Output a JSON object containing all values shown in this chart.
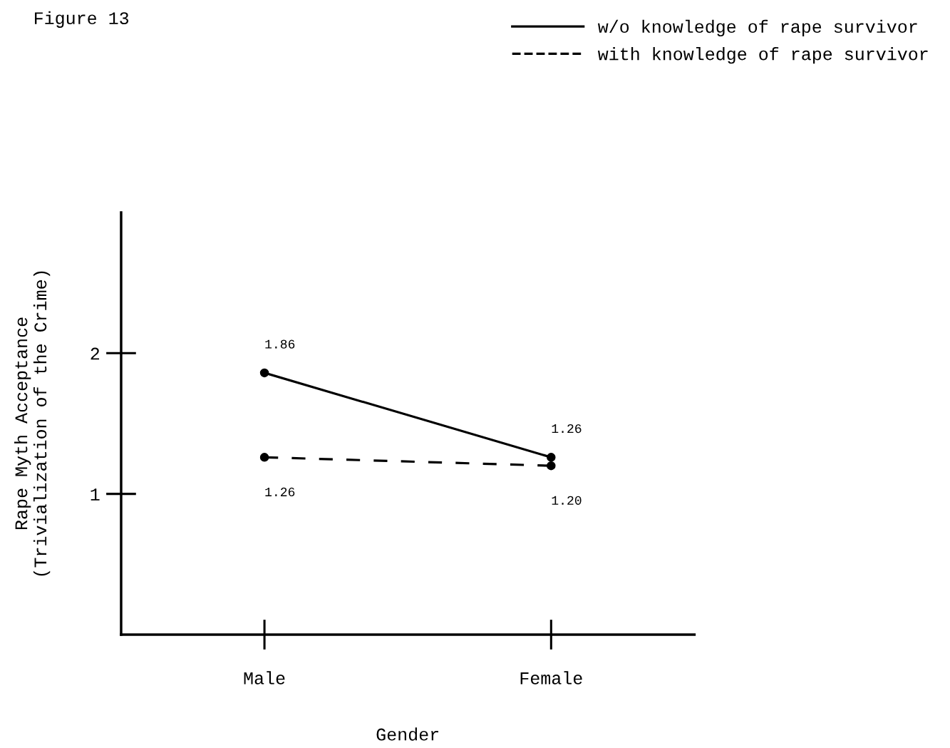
{
  "chart_data": {
    "type": "line",
    "title": "Figure 13",
    "xlabel": "Gender",
    "ylabel": "Rape Myth Acceptance\n(Trivialization of the Crime)",
    "categories": [
      "Male",
      "Female"
    ],
    "series": [
      {
        "name": "w/o knowledge of rape survivor",
        "color": "#000000",
        "line_style": "solid",
        "values": [
          1.86,
          1.26
        ],
        "value_labels": [
          "1.86",
          "1.26"
        ]
      },
      {
        "name": "with knowledge of rape survivor",
        "color": "#000000",
        "line_style": "dashed",
        "values": [
          1.26,
          1.2
        ],
        "value_labels": [
          "1.26",
          "1.20"
        ]
      }
    ],
    "ylim": [
      0,
      3
    ],
    "yticks": [
      1,
      2
    ],
    "grid": false,
    "legend": "top right",
    "marker": "circle"
  }
}
